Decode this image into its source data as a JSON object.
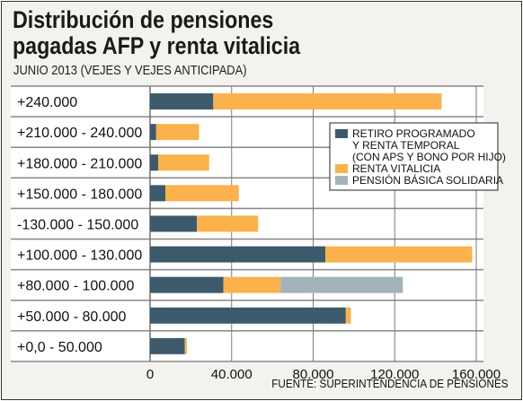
{
  "chart_data": {
    "type": "bar",
    "orientation": "horizontal",
    "stacked": true,
    "title": "Distribución de pensiones pagadas AFP y renta vitalicia",
    "title_lines": [
      "Distribución de pensiones",
      "pagadas AFP y renta vitalicia"
    ],
    "subtitle": "JUNIO 2013 (VEJES Y VEJES ANTICIPADA)",
    "source": "FUENTE: SUPERINTENDENCIA DE PENSIONES",
    "categories": [
      "+240.000",
      "+210.000 - 240.000",
      "+180.000 - 210.000",
      "+150.000 - 180.000",
      "-130.000 - 150.000",
      "+100.000 - 130.000",
      "+80.000 - 100.000",
      "+50.000 - 80.000",
      "+0,0 - 50.000"
    ],
    "series": [
      {
        "name": "RETIRO PROGRAMADO Y RENTA TEMPORAL (CON APS Y BONO POR HIJO)",
        "legend_lines": [
          "RETIRO PROGRAMADO",
          "Y RENTA TEMPORAL",
          "(CON APS Y BONO POR HIJO)"
        ],
        "color": "#3d5a6c",
        "values": [
          31000,
          3000,
          4000,
          7500,
          23000,
          86000,
          36000,
          96000,
          17000
        ]
      },
      {
        "name": "RENTA VITALICIA",
        "legend_lines": [
          "RENTA VITALICIA"
        ],
        "color": "#fbb24c",
        "values": [
          112000,
          21000,
          25000,
          36000,
          30000,
          72000,
          28000,
          2500,
          1000
        ]
      },
      {
        "name": "PENSIÓN BÁSICA SOLIDARIA",
        "legend_lines": [
          "PENSIÓN BÁSICA SOLIDARIA"
        ],
        "color": "#a3b3bc",
        "values": [
          0,
          0,
          0,
          0,
          0,
          0,
          60000,
          0,
          0
        ]
      }
    ],
    "xlim": [
      0,
      160000
    ],
    "x_ticks": [
      0,
      40000,
      80000,
      120000,
      160000
    ],
    "x_tick_labels": [
      "0",
      "40.000",
      "80.000",
      "120.000",
      "160.000"
    ],
    "grid": true,
    "legend_position": "top-right"
  }
}
